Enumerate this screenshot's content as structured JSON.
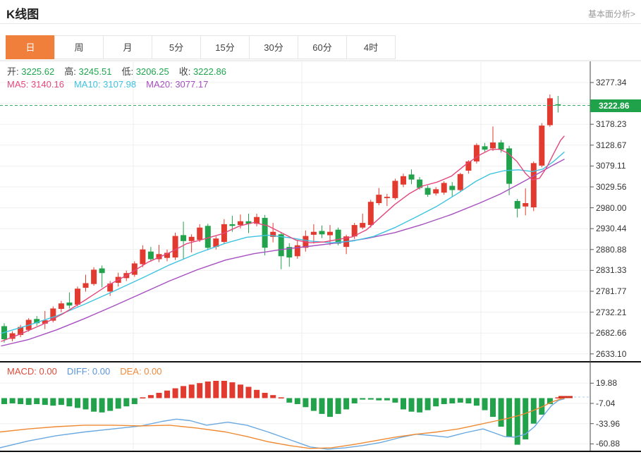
{
  "header": {
    "title": "K线图",
    "link": "基本面分析>"
  },
  "tabs": {
    "items": [
      {
        "label": "日",
        "active": true
      },
      {
        "label": "周",
        "active": false
      },
      {
        "label": "月",
        "active": false
      },
      {
        "label": "5分",
        "active": false
      },
      {
        "label": "15分",
        "active": false
      },
      {
        "label": "30分",
        "active": false
      },
      {
        "label": "60分",
        "active": false
      },
      {
        "label": "4时",
        "active": false
      }
    ]
  },
  "info_rows": {
    "ohlc": [
      {
        "label": "开:",
        "value": "3225.62"
      },
      {
        "label": "高:",
        "value": "3245.51"
      },
      {
        "label": "低:",
        "value": "3206.25"
      },
      {
        "label": "收:",
        "value": "3222.86"
      }
    ],
    "ohlc_value_color": "#1ea54e",
    "ma": [
      {
        "label": "MA5:",
        "value": "3140.16",
        "color": "#e5477d"
      },
      {
        "label": "MA10:",
        "value": "3107.98",
        "color": "#3fc3e0"
      },
      {
        "label": "MA20:",
        "value": "3077.17",
        "color": "#a64fc0"
      }
    ],
    "macd": [
      {
        "label": "MACD:",
        "value": "0.00",
        "color": "#dd4b3a"
      },
      {
        "label": "DIFF:",
        "value": "0.00",
        "color": "#5a96d8"
      },
      {
        "label": "DEA:",
        "value": "0.00",
        "color": "#ef8b3c"
      }
    ]
  },
  "colors": {
    "up": "#e23a2e",
    "down": "#21a24b",
    "price_line": "#35ae68",
    "price_label_bg": "#1fa24a",
    "ma5": "#e5477d",
    "ma10": "#3fc3e0",
    "ma20": "#a64fc0",
    "diff": "#6aa9e0",
    "dea": "#ef8a32",
    "grid": "#efefef",
    "vgrid": "#ececec",
    "axis": "#444",
    "tab_active_bg": "#ef7f3b",
    "macd_zero_dash": "#a9cdf2"
  },
  "chart_data": [
    {
      "type": "candlestick",
      "title": "K线图",
      "period": "日",
      "legend": [
        "MA5",
        "MA10",
        "MA20"
      ],
      "current_price": 3222.86,
      "latest": {
        "open": 3225.62,
        "high": 3245.51,
        "low": 3206.25,
        "close": 3222.86
      },
      "ma_values": {
        "MA5": 3140.16,
        "MA10": 3107.98,
        "MA20": 3077.17
      },
      "y_axis": {
        "top_value": 3277.34,
        "tick_step": 49.555,
        "num_ticks": 14,
        "tick_labels": [
          "3277.34",
          "3178.23",
          "3128.67",
          "3079.11",
          "3029.56",
          "2980.00",
          "2930.44",
          "2880.88",
          "2831.33",
          "2781.77",
          "2732.21",
          "2682.66",
          "2633.10"
        ],
        "hidden_tick": 3227.78
      },
      "grid": true,
      "vertical_gridlines_x": [
        189,
        428,
        682
      ],
      "candles_ohlc": [
        [
          2699,
          2706,
          2660,
          2668
        ],
        [
          2669,
          2687,
          2663,
          2682
        ],
        [
          2678,
          2702,
          2673,
          2697
        ],
        [
          2690,
          2718,
          2686,
          2714
        ],
        [
          2716,
          2723,
          2700,
          2706
        ],
        [
          2705,
          2735,
          2692,
          2713
        ],
        [
          2712,
          2746,
          2708,
          2741
        ],
        [
          2740,
          2759,
          2732,
          2753
        ],
        [
          2755,
          2779,
          2741,
          2748
        ],
        [
          2750,
          2793,
          2746,
          2788
        ],
        [
          2790,
          2821,
          2781,
          2801
        ],
        [
          2799,
          2839,
          2795,
          2833
        ],
        [
          2836,
          2843,
          2791,
          2825
        ],
        [
          2781,
          2806,
          2771,
          2800
        ],
        [
          2802,
          2826,
          2793,
          2816
        ],
        [
          2813,
          2831,
          2806,
          2825
        ],
        [
          2821,
          2853,
          2816,
          2848
        ],
        [
          2846,
          2891,
          2839,
          2881
        ],
        [
          2876,
          2887,
          2852,
          2858
        ],
        [
          2858,
          2892,
          2851,
          2870
        ],
        [
          2861,
          2881,
          2853,
          2873
        ],
        [
          2862,
          2921,
          2856,
          2913
        ],
        [
          2915,
          2947,
          2859,
          2901
        ],
        [
          2901,
          2917,
          2874,
          2911
        ],
        [
          2904,
          2941,
          2899,
          2933
        ],
        [
          2937,
          2942,
          2879,
          2885
        ],
        [
          2887,
          2912,
          2881,
          2907
        ],
        [
          2899,
          2953,
          2894,
          2941
        ],
        [
          2941,
          2961,
          2923,
          2937
        ],
        [
          2939,
          2964,
          2931,
          2948
        ],
        [
          2948,
          2966,
          2920,
          2942
        ],
        [
          2942,
          2966,
          2936,
          2958
        ],
        [
          2956,
          2963,
          2867,
          2885
        ],
        [
          2911,
          2944,
          2898,
          2923
        ],
        [
          2917,
          2921,
          2834,
          2865
        ],
        [
          2887,
          2896,
          2840,
          2862
        ],
        [
          2865,
          2903,
          2859,
          2891
        ],
        [
          2885,
          2926,
          2876,
          2913
        ],
        [
          2916,
          2941,
          2895,
          2923
        ],
        [
          2925,
          2938,
          2908,
          2917
        ],
        [
          2915,
          2939,
          2891,
          2923
        ],
        [
          2928,
          2933,
          2891,
          2895
        ],
        [
          2887,
          2916,
          2870,
          2912
        ],
        [
          2912,
          2944,
          2906,
          2939
        ],
        [
          2933,
          2966,
          2929,
          2944
        ],
        [
          2939,
          2999,
          2933,
          2994
        ],
        [
          2991,
          3027,
          2986,
          3011
        ],
        [
          3003,
          3013,
          2984,
          3006
        ],
        [
          3003,
          3049,
          2999,
          3044
        ],
        [
          3035,
          3061,
          3029,
          3055
        ],
        [
          3059,
          3071,
          3036,
          3047
        ],
        [
          3047,
          3053,
          3023,
          3027
        ],
        [
          3027,
          3033,
          3006,
          3011
        ],
        [
          3014,
          3029,
          3009,
          3024
        ],
        [
          3016,
          3043,
          3011,
          3039
        ],
        [
          3032,
          3041,
          3006,
          3022
        ],
        [
          3022,
          3063,
          3017,
          3060
        ],
        [
          3068,
          3093,
          3061,
          3090
        ],
        [
          3090,
          3133,
          3085,
          3129
        ],
        [
          3126,
          3134,
          3113,
          3118
        ],
        [
          3121,
          3173,
          3115,
          3135
        ],
        [
          3135,
          3141,
          3111,
          3118
        ],
        [
          3121,
          3127,
          3010,
          3037
        ],
        [
          2996,
          3001,
          2957,
          2978
        ],
        [
          2983,
          3026,
          2962,
          2991
        ],
        [
          2981,
          3090,
          2972,
          3086
        ],
        [
          3080,
          3181,
          3076,
          3175
        ],
        [
          3176,
          3249,
          3172,
          3240
        ],
        [
          3225.62,
          3245.51,
          3206.25,
          3222.86
        ]
      ],
      "ma5_line": [
        [
          2,
          2663
        ],
        [
          30,
          2681
        ],
        [
          60,
          2703
        ],
        [
          90,
          2729
        ],
        [
          120,
          2760
        ],
        [
          150,
          2793
        ],
        [
          180,
          2820
        ],
        [
          210,
          2851
        ],
        [
          240,
          2873
        ],
        [
          265,
          2895
        ],
        [
          290,
          2906
        ],
        [
          315,
          2918
        ],
        [
          340,
          2937
        ],
        [
          360,
          2945
        ],
        [
          380,
          2937
        ],
        [
          400,
          2920
        ],
        [
          420,
          2903
        ],
        [
          440,
          2897
        ],
        [
          460,
          2899
        ],
        [
          480,
          2905
        ],
        [
          500,
          2911
        ],
        [
          520,
          2928
        ],
        [
          540,
          2958
        ],
        [
          560,
          2988
        ],
        [
          580,
          3013
        ],
        [
          600,
          3032
        ],
        [
          620,
          3041
        ],
        [
          640,
          3055
        ],
        [
          660,
          3082
        ],
        [
          680,
          3105
        ],
        [
          695,
          3118
        ],
        [
          708,
          3119
        ],
        [
          720,
          3110
        ],
        [
          733,
          3090
        ],
        [
          745,
          3062
        ],
        [
          755,
          3046
        ],
        [
          765,
          3050
        ],
        [
          775,
          3075
        ],
        [
          785,
          3108
        ],
        [
          795,
          3140
        ],
        [
          800,
          3150
        ]
      ],
      "ma10_line": [
        [
          2,
          2682
        ],
        [
          40,
          2701
        ],
        [
          80,
          2723
        ],
        [
          120,
          2751
        ],
        [
          160,
          2781
        ],
        [
          200,
          2812
        ],
        [
          240,
          2844
        ],
        [
          280,
          2872
        ],
        [
          320,
          2896
        ],
        [
          350,
          2910
        ],
        [
          380,
          2915
        ],
        [
          410,
          2909
        ],
        [
          440,
          2901
        ],
        [
          470,
          2897
        ],
        [
          500,
          2901
        ],
        [
          530,
          2912
        ],
        [
          560,
          2933
        ],
        [
          590,
          2958
        ],
        [
          620,
          2984
        ],
        [
          650,
          3015
        ],
        [
          675,
          3043
        ],
        [
          695,
          3060
        ],
        [
          715,
          3068
        ],
        [
          735,
          3070
        ],
        [
          755,
          3066
        ],
        [
          770,
          3072
        ],
        [
          785,
          3090
        ],
        [
          800,
          3112
        ]
      ],
      "ma20_line": [
        [
          2,
          2652
        ],
        [
          40,
          2667
        ],
        [
          80,
          2690
        ],
        [
          120,
          2717
        ],
        [
          160,
          2746
        ],
        [
          200,
          2776
        ],
        [
          240,
          2806
        ],
        [
          280,
          2833
        ],
        [
          320,
          2856
        ],
        [
          360,
          2871
        ],
        [
          400,
          2881
        ],
        [
          440,
          2889
        ],
        [
          480,
          2897
        ],
        [
          520,
          2907
        ],
        [
          560,
          2921
        ],
        [
          600,
          2941
        ],
        [
          640,
          2964
        ],
        [
          680,
          2991
        ],
        [
          710,
          3013
        ],
        [
          740,
          3040
        ],
        [
          765,
          3063
        ],
        [
          785,
          3082
        ],
        [
          800,
          3095
        ]
      ]
    },
    {
      "type": "bar",
      "title": "MACD",
      "latest": {
        "MACD": 0.0,
        "DIFF": 0.0,
        "DEA": 0.0
      },
      "y_axis": {
        "tick_labels": [
          "19.88",
          "-7.04",
          "-33.96",
          "-60.88"
        ],
        "tick_values": [
          19.88,
          -7.04,
          -33.96,
          -60.88
        ]
      },
      "values": [
        -8,
        -7,
        -8,
        -9,
        -8,
        -9,
        -10,
        -9,
        -11,
        -13,
        -15,
        -18,
        -19,
        -17,
        -14,
        -11,
        -8,
        1,
        4,
        7,
        10,
        13,
        16,
        18,
        20,
        22,
        23,
        23,
        21,
        18,
        15,
        11,
        7,
        4,
        1,
        -6,
        -8,
        -12,
        -17,
        -21,
        -25,
        -21,
        -15,
        -7,
        -2,
        -2,
        -3,
        -3,
        -6,
        -15,
        -18,
        -19,
        -16,
        -11,
        -8,
        -7,
        -6,
        -7,
        -10,
        -16,
        -25,
        -38,
        -52,
        -62,
        -55,
        -34,
        -22,
        -8,
        1
      ],
      "diff_line": [
        [
          0,
          -66
        ],
        [
          40,
          -57
        ],
        [
          80,
          -50
        ],
        [
          120,
          -45
        ],
        [
          160,
          -41
        ],
        [
          200,
          -37
        ],
        [
          230,
          -31
        ],
        [
          250,
          -28
        ],
        [
          270,
          -30
        ],
        [
          293,
          -36
        ],
        [
          323,
          -32
        ],
        [
          350,
          -36
        ],
        [
          380,
          -45
        ],
        [
          410,
          -55
        ],
        [
          440,
          -65
        ],
        [
          465,
          -68
        ],
        [
          490,
          -66
        ],
        [
          515,
          -63
        ],
        [
          540,
          -59
        ],
        [
          565,
          -53
        ],
        [
          590,
          -48
        ],
        [
          615,
          -50
        ],
        [
          635,
          -52
        ],
        [
          660,
          -46
        ],
        [
          685,
          -41
        ],
        [
          700,
          -46
        ],
        [
          715,
          -51
        ],
        [
          730,
          -52
        ],
        [
          745,
          -48
        ],
        [
          758,
          -38
        ],
        [
          770,
          -24
        ],
        [
          782,
          -10
        ],
        [
          792,
          -3
        ],
        [
          800,
          -1
        ]
      ],
      "dea_line": [
        [
          0,
          -45
        ],
        [
          40,
          -41
        ],
        [
          80,
          -38
        ],
        [
          120,
          -36
        ],
        [
          160,
          -36
        ],
        [
          200,
          -37
        ],
        [
          240,
          -36
        ],
        [
          280,
          -40
        ],
        [
          320,
          -45
        ],
        [
          350,
          -51
        ],
        [
          380,
          -58
        ],
        [
          410,
          -63
        ],
        [
          440,
          -67
        ],
        [
          470,
          -66
        ],
        [
          500,
          -62
        ],
        [
          530,
          -57
        ],
        [
          560,
          -52
        ],
        [
          590,
          -48
        ],
        [
          620,
          -45
        ],
        [
          650,
          -41
        ],
        [
          680,
          -35
        ],
        [
          700,
          -31
        ],
        [
          720,
          -27
        ],
        [
          740,
          -22
        ],
        [
          755,
          -17
        ],
        [
          770,
          -11
        ],
        [
          783,
          -5
        ],
        [
          795,
          -1
        ],
        [
          800,
          0
        ]
      ]
    }
  ]
}
